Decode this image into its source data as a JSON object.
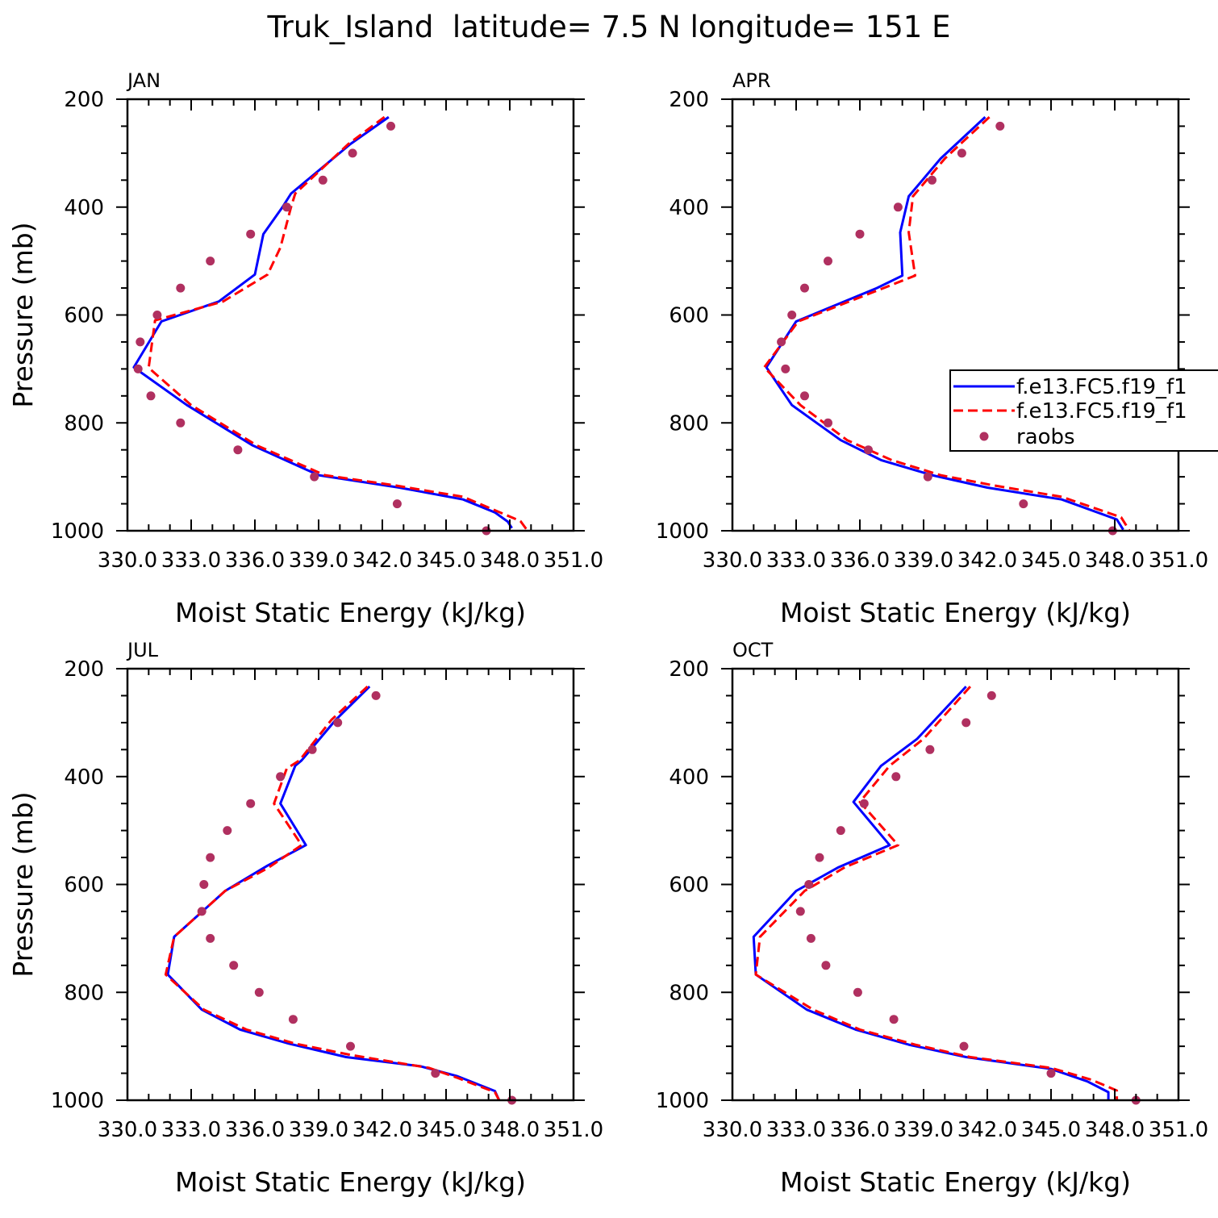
{
  "title": "Truk_Island  latitude= 7.5 N longitude= 151 E",
  "colors": {
    "model1": "#0000ff",
    "model2": "#ff0000",
    "raobs": "#b03060"
  },
  "legend": {
    "placement": "right of APR panel",
    "entries": [
      "f.e13.FC5.f19_f1",
      "f.e13.FC5.f19_f1",
      "raobs"
    ]
  },
  "chart_data": [
    {
      "panel": "JAN",
      "type": "line",
      "xlabel": "Moist Static Energy (kJ/kg)",
      "ylabel": "Pressure (mb)",
      "xlim": [
        330,
        351
      ],
      "ylim": [
        1000,
        200
      ],
      "xticks": [
        "330.0",
        "333.0",
        "336.0",
        "339.0",
        "342.0",
        "345.0",
        "348.0",
        "351.0"
      ],
      "yticks": [
        "200",
        "400",
        "600",
        "800",
        "1000"
      ],
      "series": [
        {
          "name": "f.e13.FC5.f19_f1",
          "style": "solid",
          "points": [
            [
              342.3,
              233
            ],
            [
              340.5,
              283
            ],
            [
              337.7,
              375
            ],
            [
              337.3,
              400
            ],
            [
              336.4,
              450
            ],
            [
              336.0,
              525
            ],
            [
              334.3,
              575
            ],
            [
              331.6,
              612
            ],
            [
              330.3,
              697
            ],
            [
              332.8,
              767
            ],
            [
              335.9,
              842
            ],
            [
              339.0,
              897
            ],
            [
              342.8,
              920
            ],
            [
              345.8,
              942
            ],
            [
              347.3,
              966
            ],
            [
              347.9,
              983
            ],
            [
              348.1,
              995
            ]
          ]
        },
        {
          "name": "f.e13.FC5.f19_f1",
          "style": "dashed",
          "points": [
            [
              342.1,
              233
            ],
            [
              340.4,
              283
            ],
            [
              337.9,
              375
            ],
            [
              337.7,
              400
            ],
            [
              337.2,
              475
            ],
            [
              336.6,
              525
            ],
            [
              334.5,
              575
            ],
            [
              331.3,
              610
            ],
            [
              331.0,
              698
            ],
            [
              333.0,
              767
            ],
            [
              336.1,
              842
            ],
            [
              339.3,
              897
            ],
            [
              342.6,
              916
            ],
            [
              345.8,
              937
            ],
            [
              347.3,
              962
            ],
            [
              348.5,
              982
            ],
            [
              348.8,
              998
            ]
          ]
        },
        {
          "name": "raobs",
          "style": "dots",
          "points": [
            [
              342.4,
              250
            ],
            [
              340.6,
              300
            ],
            [
              339.2,
              350
            ],
            [
              337.5,
              400
            ],
            [
              335.8,
              450
            ],
            [
              333.9,
              500
            ],
            [
              332.5,
              550
            ],
            [
              331.4,
              600
            ],
            [
              330.6,
              650
            ],
            [
              330.5,
              700
            ],
            [
              331.1,
              750
            ],
            [
              332.5,
              800
            ],
            [
              335.2,
              850
            ],
            [
              338.8,
              900
            ],
            [
              342.7,
              950
            ],
            [
              346.9,
              1000
            ]
          ]
        }
      ]
    },
    {
      "panel": "APR",
      "type": "line",
      "xlabel": "Moist Static Energy (kJ/kg)",
      "ylabel": "",
      "xlim": [
        330,
        351
      ],
      "ylim": [
        1000,
        200
      ],
      "xticks": [
        "330.0",
        "333.0",
        "336.0",
        "339.0",
        "342.0",
        "345.0",
        "348.0",
        "351.0"
      ],
      "yticks": [
        "200",
        "400",
        "600",
        "800",
        "1000"
      ],
      "series": [
        {
          "name": "f.e13.FC5.f19_f1",
          "style": "solid",
          "points": [
            [
              341.9,
              233
            ],
            [
              339.8,
              310
            ],
            [
              338.3,
              380
            ],
            [
              337.9,
              447
            ],
            [
              338.0,
              527
            ],
            [
              336.8,
              550
            ],
            [
              333.0,
              612
            ],
            [
              331.6,
              697
            ],
            [
              332.8,
              767
            ],
            [
              335.1,
              832
            ],
            [
              337.0,
              869
            ],
            [
              339.4,
              897
            ],
            [
              342.0,
              920
            ],
            [
              345.5,
              942
            ],
            [
              348.1,
              979
            ],
            [
              348.4,
              998
            ]
          ]
        },
        {
          "name": "f.e13.FC5.f19_f1",
          "style": "dashed",
          "points": [
            [
              342.1,
              233
            ],
            [
              340.0,
              310
            ],
            [
              338.5,
              380
            ],
            [
              338.3,
              447
            ],
            [
              338.6,
              527
            ],
            [
              336.8,
              555
            ],
            [
              333.1,
              612
            ],
            [
              331.5,
              697
            ],
            [
              333.2,
              767
            ],
            [
              335.4,
              832
            ],
            [
              337.5,
              869
            ],
            [
              339.8,
              897
            ],
            [
              342.3,
              916
            ],
            [
              345.5,
              937
            ],
            [
              348.3,
              975
            ],
            [
              348.7,
              1000
            ]
          ]
        },
        {
          "name": "raobs",
          "style": "dots",
          "points": [
            [
              342.6,
              250
            ],
            [
              340.8,
              300
            ],
            [
              339.4,
              350
            ],
            [
              337.8,
              400
            ],
            [
              336.0,
              450
            ],
            [
              334.5,
              500
            ],
            [
              333.4,
              550
            ],
            [
              332.8,
              600
            ],
            [
              332.3,
              650
            ],
            [
              332.5,
              700
            ],
            [
              333.4,
              750
            ],
            [
              334.5,
              800
            ],
            [
              336.4,
              850
            ],
            [
              339.2,
              900
            ],
            [
              343.7,
              950
            ],
            [
              347.9,
              1000
            ]
          ]
        }
      ]
    },
    {
      "panel": "JUL",
      "type": "line",
      "xlabel": "Moist Static Energy (kJ/kg)",
      "ylabel": "Pressure (mb)",
      "xlim": [
        330,
        351
      ],
      "ylim": [
        1000,
        200
      ],
      "xticks": [
        "330.0",
        "333.0",
        "336.0",
        "339.0",
        "342.0",
        "345.0",
        "348.0",
        "351.0"
      ],
      "yticks": [
        "200",
        "400",
        "600",
        "800",
        "1000"
      ],
      "series": [
        {
          "name": "f.e13.FC5.f19_f1",
          "style": "solid",
          "points": [
            [
              341.4,
              233
            ],
            [
              339.8,
              295
            ],
            [
              338.2,
              370
            ],
            [
              337.9,
              380
            ],
            [
              337.2,
              450
            ],
            [
              338.4,
              527
            ],
            [
              336.6,
              565
            ],
            [
              334.6,
              612
            ],
            [
              332.2,
              697
            ],
            [
              331.9,
              767
            ],
            [
              333.5,
              832
            ],
            [
              335.3,
              869
            ],
            [
              337.6,
              895
            ],
            [
              340.3,
              920
            ],
            [
              343.8,
              937
            ],
            [
              345.5,
              955
            ],
            [
              347.3,
              983
            ],
            [
              347.5,
              1000
            ]
          ]
        },
        {
          "name": "f.e13.FC5.f19_f1",
          "style": "dashed",
          "points": [
            [
              341.3,
              233
            ],
            [
              339.6,
              295
            ],
            [
              338.1,
              370
            ],
            [
              337.5,
              385
            ],
            [
              336.9,
              450
            ],
            [
              338.2,
              527
            ],
            [
              336.6,
              570
            ],
            [
              334.6,
              612
            ],
            [
              332.2,
              697
            ],
            [
              331.8,
              767
            ],
            [
              333.6,
              832
            ],
            [
              335.6,
              869
            ],
            [
              337.9,
              895
            ],
            [
              340.5,
              916
            ],
            [
              344.2,
              940
            ],
            [
              345.5,
              958
            ],
            [
              347.3,
              985
            ],
            [
              347.5,
              1000
            ]
          ]
        },
        {
          "name": "raobs",
          "style": "dots",
          "points": [
            [
              341.7,
              250
            ],
            [
              339.9,
              300
            ],
            [
              338.7,
              350
            ],
            [
              337.2,
              400
            ],
            [
              335.8,
              450
            ],
            [
              334.7,
              500
            ],
            [
              333.9,
              550
            ],
            [
              333.6,
              600
            ],
            [
              333.5,
              650
            ],
            [
              333.9,
              700
            ],
            [
              335.0,
              750
            ],
            [
              336.2,
              800
            ],
            [
              337.8,
              850
            ],
            [
              340.5,
              900
            ],
            [
              344.5,
              950
            ],
            [
              348.1,
              1000
            ]
          ]
        }
      ]
    },
    {
      "panel": "OCT",
      "type": "line",
      "xlabel": "Moist Static Energy (kJ/kg)",
      "ylabel": "",
      "xlim": [
        330,
        351
      ],
      "ylim": [
        1000,
        200
      ],
      "xticks": [
        "330.0",
        "333.0",
        "336.0",
        "339.0",
        "342.0",
        "345.0",
        "348.0",
        "351.0"
      ],
      "yticks": [
        "200",
        "400",
        "600",
        "800",
        "1000"
      ],
      "series": [
        {
          "name": "f.e13.FC5.f19_f1",
          "style": "solid",
          "points": [
            [
              341.0,
              233
            ],
            [
              338.7,
              330
            ],
            [
              337.0,
              380
            ],
            [
              335.7,
              447
            ],
            [
              337.4,
              527
            ],
            [
              335.0,
              568
            ],
            [
              333.0,
              612
            ],
            [
              331.0,
              697
            ],
            [
              331.1,
              767
            ],
            [
              333.5,
              832
            ],
            [
              335.8,
              869
            ],
            [
              338.3,
              897
            ],
            [
              341.0,
              920
            ],
            [
              345.0,
              942
            ],
            [
              346.7,
              965
            ],
            [
              347.7,
              985
            ],
            [
              347.7,
              1000
            ]
          ]
        },
        {
          "name": "f.e13.FC5.f19_f1",
          "style": "dashed",
          "points": [
            [
              341.2,
              233
            ],
            [
              339.0,
              330
            ],
            [
              337.4,
              380
            ],
            [
              336.0,
              447
            ],
            [
              337.8,
              527
            ],
            [
              335.3,
              568
            ],
            [
              333.4,
              612
            ],
            [
              331.3,
              697
            ],
            [
              331.1,
              767
            ],
            [
              333.8,
              832
            ],
            [
              336.0,
              869
            ],
            [
              338.6,
              897
            ],
            [
              341.2,
              920
            ],
            [
              345.0,
              940
            ],
            [
              346.9,
              962
            ],
            [
              348.1,
              982
            ],
            [
              348.1,
              1000
            ]
          ]
        },
        {
          "name": "raobs",
          "style": "dots",
          "points": [
            [
              342.2,
              250
            ],
            [
              341.0,
              300
            ],
            [
              339.3,
              350
            ],
            [
              337.7,
              400
            ],
            [
              336.2,
              450
            ],
            [
              335.1,
              500
            ],
            [
              334.1,
              550
            ],
            [
              333.6,
              600
            ],
            [
              333.2,
              650
            ],
            [
              333.7,
              700
            ],
            [
              334.4,
              750
            ],
            [
              335.9,
              800
            ],
            [
              337.6,
              850
            ],
            [
              340.9,
              900
            ],
            [
              345.0,
              950
            ],
            [
              349.0,
              1000
            ]
          ]
        }
      ]
    }
  ]
}
